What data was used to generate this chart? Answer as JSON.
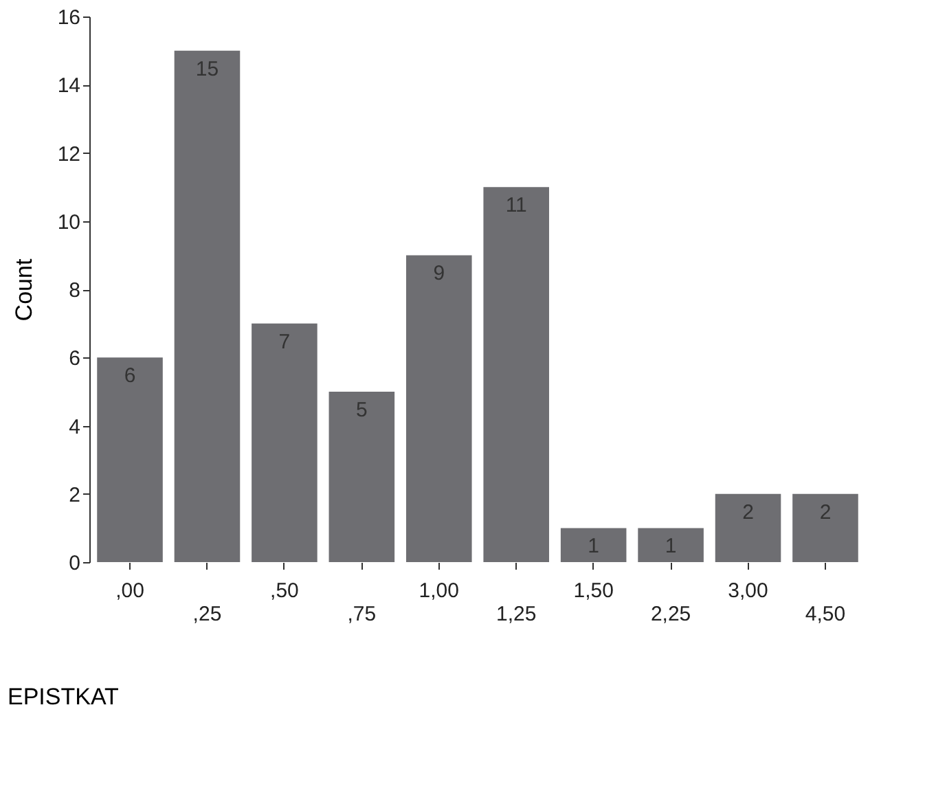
{
  "chart_data": {
    "type": "bar",
    "xlabel": "EPISTKAT",
    "ylabel": "Count",
    "categories": [
      ",00",
      ",25",
      ",50",
      ",75",
      "1,00",
      "1,25",
      "1,50",
      "2,25",
      "3,00",
      "4,50"
    ],
    "values": [
      6,
      15,
      7,
      5,
      9,
      11,
      1,
      1,
      2,
      2
    ],
    "color": "#6e6e72",
    "ylim": [
      0,
      16
    ],
    "yticks": [
      0,
      2,
      4,
      6,
      8,
      10,
      12,
      14,
      16
    ],
    "grid": false,
    "data_labels": true
  }
}
